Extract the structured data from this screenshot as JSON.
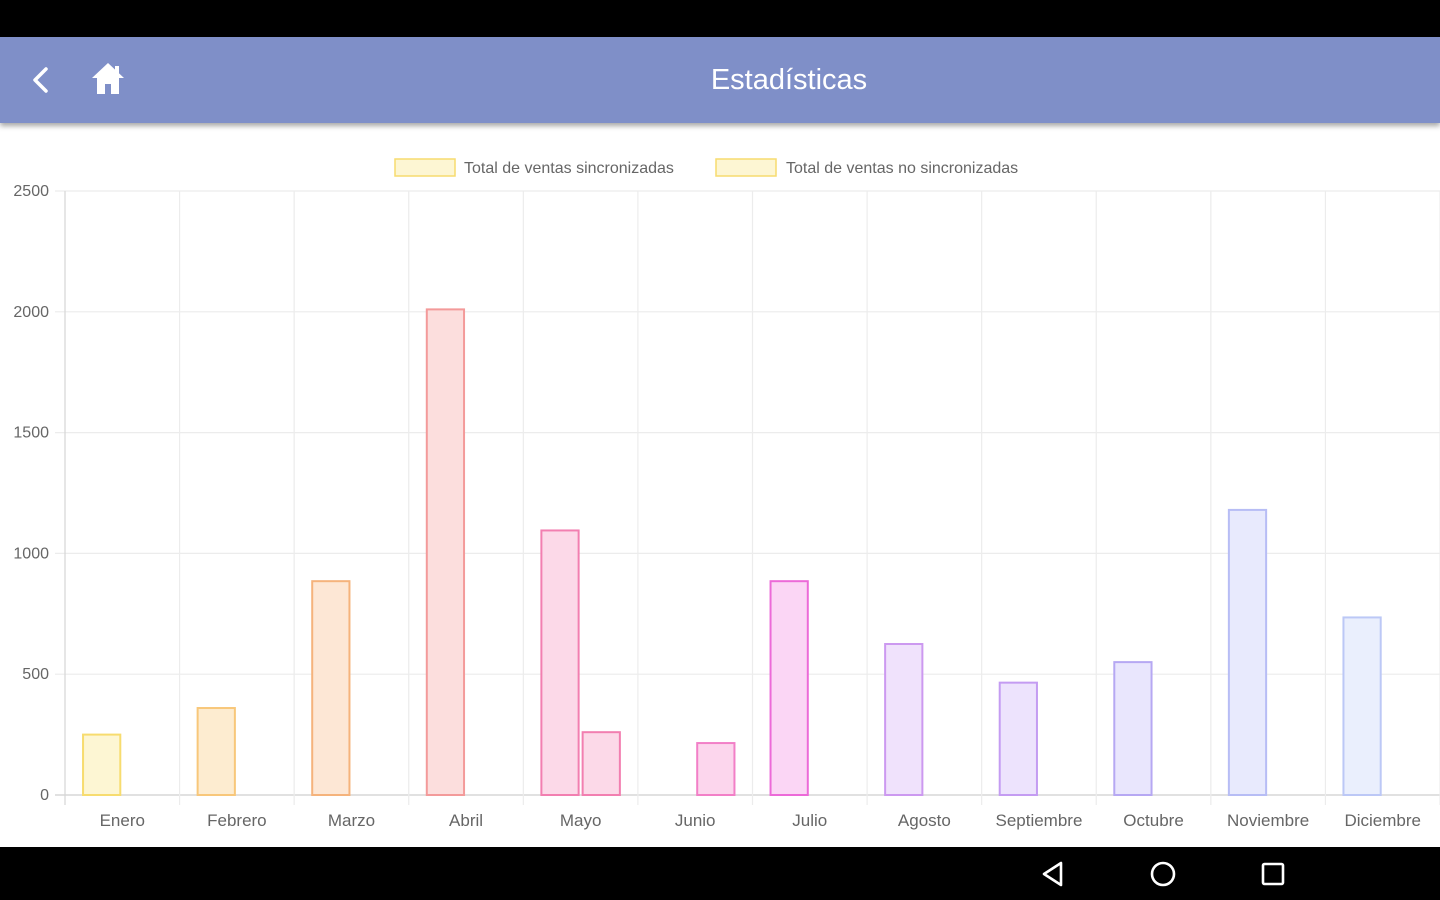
{
  "app_bar": {
    "title": "Estadísticas",
    "back_icon": "chevron-left-icon",
    "home_icon": "home-icon",
    "color": "#7f8fc8"
  },
  "nav_bar": {
    "back_icon": "triangle-back-icon",
    "home_icon": "circle-home-icon",
    "recents_icon": "square-recents-icon"
  },
  "chart_data": {
    "type": "bar",
    "categories": [
      "Enero",
      "Febrero",
      "Marzo",
      "Abril",
      "Mayo",
      "Junio",
      "Julio",
      "Agosto",
      "Septiembre",
      "Octubre",
      "Noviembre",
      "Diciembre"
    ],
    "series": [
      {
        "name": "Total de ventas sincronizadas",
        "values": [
          250,
          360,
          885,
          2010,
          1095,
          0,
          885,
          625,
          465,
          550,
          1180,
          735
        ]
      },
      {
        "name": "Total de ventas no sincronizadas",
        "values": [
          0,
          0,
          0,
          0,
          260,
          215,
          0,
          0,
          0,
          0,
          0,
          0
        ]
      }
    ],
    "bar_colors": [
      {
        "stroke": "#f7dc6f",
        "fill": "#fdf6d3"
      },
      {
        "stroke": "#f8c77a",
        "fill": "#fdecd0"
      },
      {
        "stroke": "#f5b37c",
        "fill": "#fde7d5"
      },
      {
        "stroke": "#f39a9a",
        "fill": "#fcdedd"
      },
      {
        "stroke": "#f27fb0",
        "fill": "#fcd9e8"
      },
      {
        "stroke": "#f27fc7",
        "fill": "#fcd6ed"
      },
      {
        "stroke": "#ec6ad8",
        "fill": "#fbd6f5"
      },
      {
        "stroke": "#cc99f0",
        "fill": "#f0e2fc"
      },
      {
        "stroke": "#c49cf2",
        "fill": "#ede3fd"
      },
      {
        "stroke": "#b6a8f3",
        "fill": "#e9e6fd"
      },
      {
        "stroke": "#b7bdf5",
        "fill": "#e8eafd"
      },
      {
        "stroke": "#bcc8f6",
        "fill": "#eaeffd"
      }
    ],
    "legend_color": {
      "stroke": "#f7dc6f",
      "fill": "#fdf6d3"
    },
    "ylim": [
      0,
      2500
    ],
    "yticks": [
      "0",
      "500",
      "1000",
      "1500",
      "2000",
      "2500"
    ],
    "grid": true,
    "legend": "top-center"
  }
}
